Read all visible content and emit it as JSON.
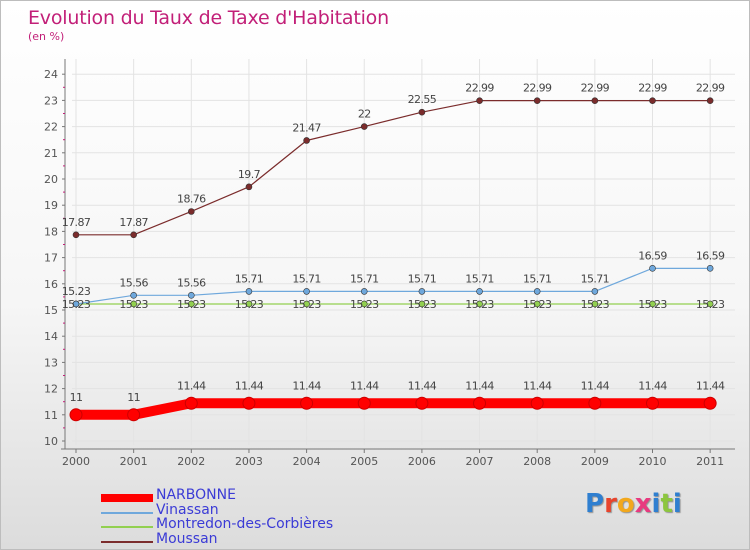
{
  "title": "Evolution du Taux de Taxe d'Habitation",
  "unit": "(en %)",
  "chart_data": {
    "type": "line",
    "x": [
      2000,
      2001,
      2002,
      2003,
      2004,
      2005,
      2006,
      2007,
      2008,
      2009,
      2010,
      2011
    ],
    "ylim": [
      10,
      24
    ],
    "yticks": [
      10,
      11,
      12,
      13,
      14,
      15,
      16,
      17,
      18,
      19,
      20,
      21,
      22,
      23,
      24
    ],
    "grid": true,
    "legend_position": "bottom-left",
    "series": [
      {
        "name": "NARBONNE",
        "color": "#ff0000",
        "values": [
          11,
          11,
          11.44,
          11.44,
          11.44,
          11.44,
          11.44,
          11.44,
          11.44,
          11.44,
          11.44,
          11.44
        ]
      },
      {
        "name": "Vinassan",
        "color": "#6fa8dc",
        "values": [
          15.23,
          15.56,
          15.56,
          15.71,
          15.71,
          15.71,
          15.71,
          15.71,
          15.71,
          15.71,
          16.59,
          16.59
        ]
      },
      {
        "name": "Montredon-des-Corbières",
        "color": "#92d050",
        "values": [
          15.23,
          15.23,
          15.23,
          15.23,
          15.23,
          15.23,
          15.23,
          15.23,
          15.23,
          15.23,
          15.23,
          15.23
        ]
      },
      {
        "name": "Moussan",
        "color": "#7b2c2c",
        "values": [
          17.87,
          17.87,
          18.76,
          19.7,
          21.47,
          22,
          22.55,
          22.99,
          22.99,
          22.99,
          22.99,
          22.99
        ]
      }
    ],
    "point_labels": [
      [
        "11",
        "11",
        "11.44",
        "11.44",
        "11.44",
        "11.44",
        "11.44",
        "11.44",
        "11.44",
        "11.44",
        "11.44",
        "11.44"
      ],
      [
        "15.23",
        "15.56",
        "15.56",
        "15.71",
        "15.71",
        "15.71",
        "15.71",
        "15.71",
        "15.71",
        "15.71",
        "16.59",
        "16.59"
      ],
      [
        "15.23",
        "15.23",
        "15.23",
        "15.23",
        "15.23",
        "15.23",
        "15.23",
        "15.23",
        "15.23",
        "15.23",
        "15.23",
        "15.23"
      ],
      [
        "17.87",
        "17.87",
        "18.76",
        "19.7",
        "21.47",
        "22",
        "22.55",
        "22.99",
        "22.99",
        "22.99",
        "22.99",
        "22.99"
      ]
    ]
  },
  "logo": {
    "text": "Proxiti",
    "colors": [
      "#2f7fd0",
      "#e8442c",
      "#f2a81d",
      "#e83a7f",
      "#2f7fd0",
      "#8dc63f",
      "#2f7fd0"
    ]
  }
}
